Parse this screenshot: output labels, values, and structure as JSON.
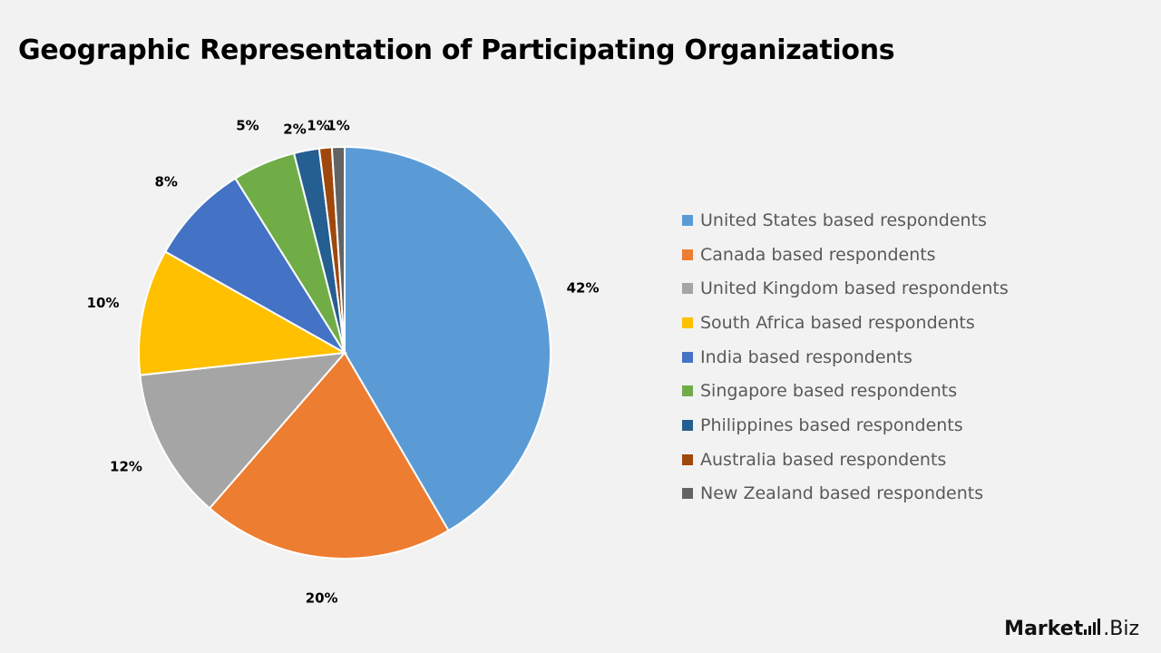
{
  "page": {
    "title": "Geographic Representation of Participating Organizations",
    "logo_text_main": "Market",
    "logo_text_tail": ".Biz"
  },
  "chart_data": {
    "type": "pie",
    "title": "Geographic Representation of Participating Organizations",
    "legend_position": "right",
    "start_angle": "top, clockwise",
    "slices": [
      {
        "label": "United States based respondents",
        "value": 42,
        "data_label": "42%",
        "color": "#5b9bd5"
      },
      {
        "label": "Canada based respondents",
        "value": 20,
        "data_label": "20%",
        "color": "#ed7d31"
      },
      {
        "label": "United Kingdom based respondents",
        "value": 12,
        "data_label": "12%",
        "color": "#a5a5a5"
      },
      {
        "label": "South Africa based respondents",
        "value": 10,
        "data_label": "10%",
        "color": "#ffc000"
      },
      {
        "label": "India based respondents",
        "value": 8,
        "data_label": "8%",
        "color": "#4472c4"
      },
      {
        "label": "Singapore based respondents",
        "value": 5,
        "data_label": "5%",
        "color": "#70ad47"
      },
      {
        "label": "Philippines based respondents",
        "value": 2,
        "data_label": "2%",
        "color": "#255e91"
      },
      {
        "label": "Australia based respondents",
        "value": 1,
        "data_label": "1%",
        "color": "#9e480e"
      },
      {
        "label": "New Zealand based respondents",
        "value": 1,
        "data_label": "1%",
        "color": "#636363"
      }
    ]
  }
}
